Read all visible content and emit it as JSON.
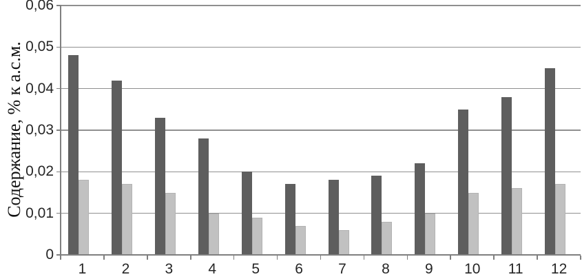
{
  "chart_data": {
    "type": "bar",
    "title": "",
    "xlabel": "",
    "ylabel": "Содержание, % к а.с.м.",
    "categories": [
      "1",
      "2",
      "3",
      "4",
      "5",
      "6",
      "7",
      "8",
      "9",
      "10",
      "11",
      "12"
    ],
    "series": [
      {
        "name": "dark-gray-series",
        "color": "#5e5e5e",
        "values": [
          0.048,
          0.042,
          0.033,
          0.028,
          0.02,
          0.017,
          0.018,
          0.019,
          0.022,
          0.035,
          0.038,
          0.045
        ]
      },
      {
        "name": "light-gray-series",
        "color": "#c1c1c1",
        "values": [
          0.018,
          0.017,
          0.015,
          0.01,
          0.009,
          0.007,
          0.006,
          0.008,
          0.01,
          0.015,
          0.016,
          0.017
        ]
      }
    ],
    "ylim": [
      0,
      0.06
    ],
    "ytick_step": 0.01,
    "ytick_labels": [
      "0",
      "0,01",
      "0,02",
      "0,03",
      "0,04",
      "0,05",
      "0,06"
    ],
    "grid": true,
    "legend": "none",
    "colors": {
      "grid": "#8f8f8f",
      "axis": "#7f7f7f",
      "text": "#262626",
      "background": "#ffffff"
    }
  }
}
